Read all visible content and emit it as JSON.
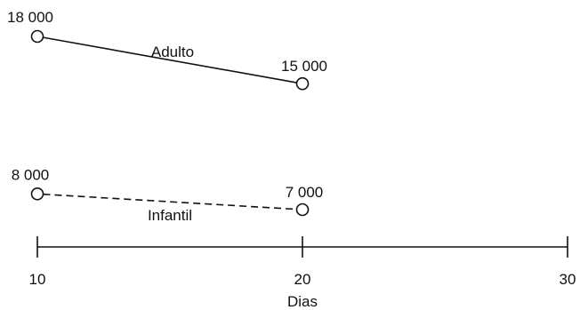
{
  "chart_data": {
    "type": "line",
    "title": "",
    "xlabel": "Dias",
    "ylabel": "",
    "xlim": [
      10,
      30
    ],
    "xticks": [
      10,
      20,
      30
    ],
    "grid": false,
    "series": [
      {
        "name": "Adulto",
        "style": "solid",
        "x": [
          10,
          20
        ],
        "y": [
          18000,
          15000
        ],
        "labels": [
          "18 000",
          "15 000"
        ]
      },
      {
        "name": "Infantil",
        "style": "dashed",
        "x": [
          10,
          20
        ],
        "y": [
          8000,
          7000
        ],
        "labels": [
          "8 000",
          "7 000"
        ]
      }
    ],
    "colors": {
      "ink": "#111111",
      "background": "#ffffff"
    }
  }
}
